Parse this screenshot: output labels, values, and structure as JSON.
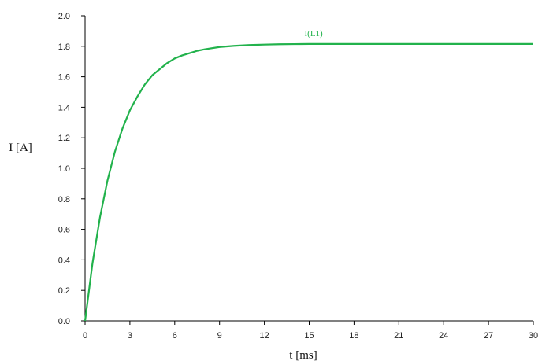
{
  "chart_data": {
    "type": "line",
    "xlabel": "t [ms]",
    "ylabel": "I [A]",
    "xlim": [
      0,
      30
    ],
    "ylim": [
      0,
      2.0
    ],
    "x_ticks": [
      "0",
      "3",
      "6",
      "9",
      "12",
      "15",
      "18",
      "21",
      "24",
      "27",
      "30"
    ],
    "y_ticks": [
      "0.0",
      "0.2",
      "0.4",
      "0.6",
      "0.8",
      "1.0",
      "1.2",
      "1.4",
      "1.6",
      "1.8",
      "2.0"
    ],
    "grid": false,
    "series": [
      {
        "name": "I(L1)",
        "color": "#22b24c",
        "x": [
          0,
          0.5,
          1,
          1.5,
          2,
          2.5,
          3,
          3.5,
          4,
          4.5,
          5,
          5.5,
          6,
          6.5,
          7,
          7.5,
          8,
          9,
          10,
          11,
          12,
          13,
          14,
          15,
          16,
          18,
          20,
          22,
          24,
          26,
          28,
          30
        ],
        "y": [
          0,
          0.38,
          0.68,
          0.92,
          1.11,
          1.26,
          1.38,
          1.47,
          1.55,
          1.61,
          1.65,
          1.69,
          1.72,
          1.74,
          1.755,
          1.77,
          1.78,
          1.795,
          1.803,
          1.808,
          1.811,
          1.813,
          1.814,
          1.815,
          1.815,
          1.815,
          1.815,
          1.815,
          1.815,
          1.815,
          1.815,
          1.815
        ]
      }
    ]
  }
}
